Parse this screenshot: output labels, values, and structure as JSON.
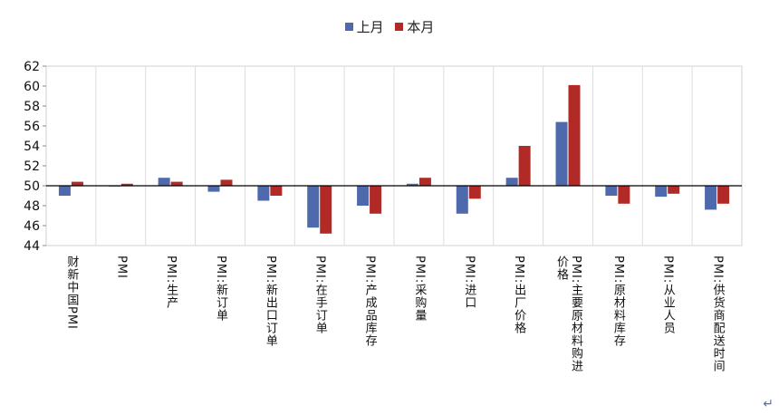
{
  "chart_data": {
    "type": "bar",
    "legend": {
      "position": "top-center"
    },
    "series": [
      {
        "name": "上月",
        "color": "#4f6aac",
        "values": [
          49.0,
          50.0,
          50.8,
          49.4,
          48.5,
          45.8,
          48.0,
          50.2,
          47.2,
          50.8,
          56.4,
          49.0,
          48.9,
          47.6
        ]
      },
      {
        "name": "本月",
        "color": "#b22a25",
        "values": [
          50.4,
          50.2,
          50.4,
          50.6,
          49.0,
          45.2,
          47.2,
          50.8,
          48.7,
          54.0,
          60.1,
          48.2,
          49.2,
          48.2
        ]
      }
    ],
    "categories": [
      "财新中国PMI",
      "PMI",
      "PMI:生产",
      "PMI:新订单",
      "PMI:新出口订单",
      "PMI:在手订单",
      "PMI:产成品库存",
      "PMI:采购量",
      "PMI:进口",
      "PMI:出厂价格",
      "PMI:主要原材料购进\n价格",
      "PMI:原材料库存",
      "PMI:从业人员",
      "PMI:供货商配送时间"
    ],
    "ylim": [
      44,
      62
    ],
    "yticks": [
      "44",
      "46",
      "48",
      "50",
      "52",
      "54",
      "56",
      "58",
      "60",
      "62"
    ],
    "baseline": 50,
    "grid": false
  },
  "corner_mark": "↵"
}
